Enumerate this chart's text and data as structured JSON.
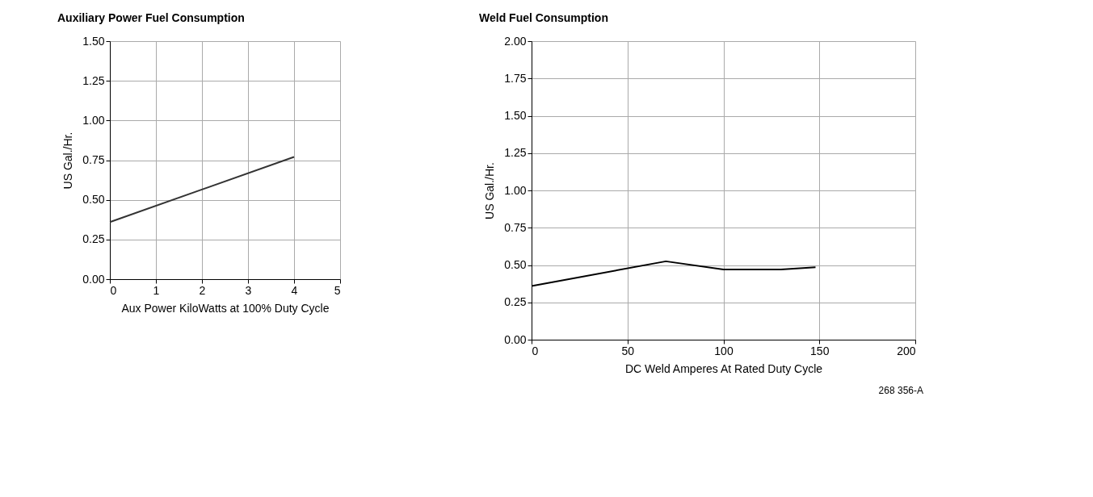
{
  "chart_data": [
    {
      "type": "line",
      "title": "Auxiliary Power Fuel Consumption",
      "xlabel": "Aux Power KiloWatts at 100% Duty Cycle",
      "ylabel": "US Gal./Hr.",
      "x": [
        0,
        4
      ],
      "series": [
        {
          "color": "#333333",
          "values": [
            0.36,
            0.77
          ]
        }
      ],
      "xlim": [
        0,
        5
      ],
      "xticks": [
        0,
        1,
        2,
        3,
        4,
        5
      ],
      "ylim": [
        0,
        1.5
      ],
      "yticks": [
        {
          "value": 0,
          "label": "0.00"
        },
        {
          "value": 0.25,
          "label": "0.25"
        },
        {
          "value": 0.5,
          "label": "0.50"
        },
        {
          "value": 0.75,
          "label": "0.75"
        },
        {
          "value": 1.0,
          "label": "1.00"
        },
        {
          "value": 1.25,
          "label": "1.25"
        },
        {
          "value": 1.5,
          "label": "1.50"
        }
      ],
      "grid": true,
      "marker": "none",
      "line_style": "solid"
    },
    {
      "type": "line",
      "title": "Weld Fuel Consumption",
      "xlabel": "DC Weld Amperes At Rated Duty Cycle",
      "ylabel": "US Gal./Hr.",
      "x": [
        0,
        70,
        100,
        130,
        148
      ],
      "series": [
        {
          "color": "#000000",
          "values": [
            0.36,
            0.525,
            0.47,
            0.47,
            0.485
          ]
        }
      ],
      "xlim": [
        0,
        200
      ],
      "xticks": [
        0,
        50,
        100,
        150,
        200
      ],
      "ylim": [
        0,
        2.0
      ],
      "yticks": [
        {
          "value": 0,
          "label": "0.00"
        },
        {
          "value": 0.25,
          "label": "0.25"
        },
        {
          "value": 0.5,
          "label": "0.50"
        },
        {
          "value": 0.75,
          "label": "0.75"
        },
        {
          "value": 1.0,
          "label": "1.00"
        },
        {
          "value": 1.25,
          "label": "1.25"
        },
        {
          "value": 1.5,
          "label": "1.50"
        },
        {
          "value": 1.75,
          "label": "1.75"
        },
        {
          "value": 2.0,
          "label": "2.00"
        }
      ],
      "grid": true,
      "marker": "none",
      "line_style": "solid",
      "annotations": [
        "268 356-A"
      ]
    }
  ]
}
